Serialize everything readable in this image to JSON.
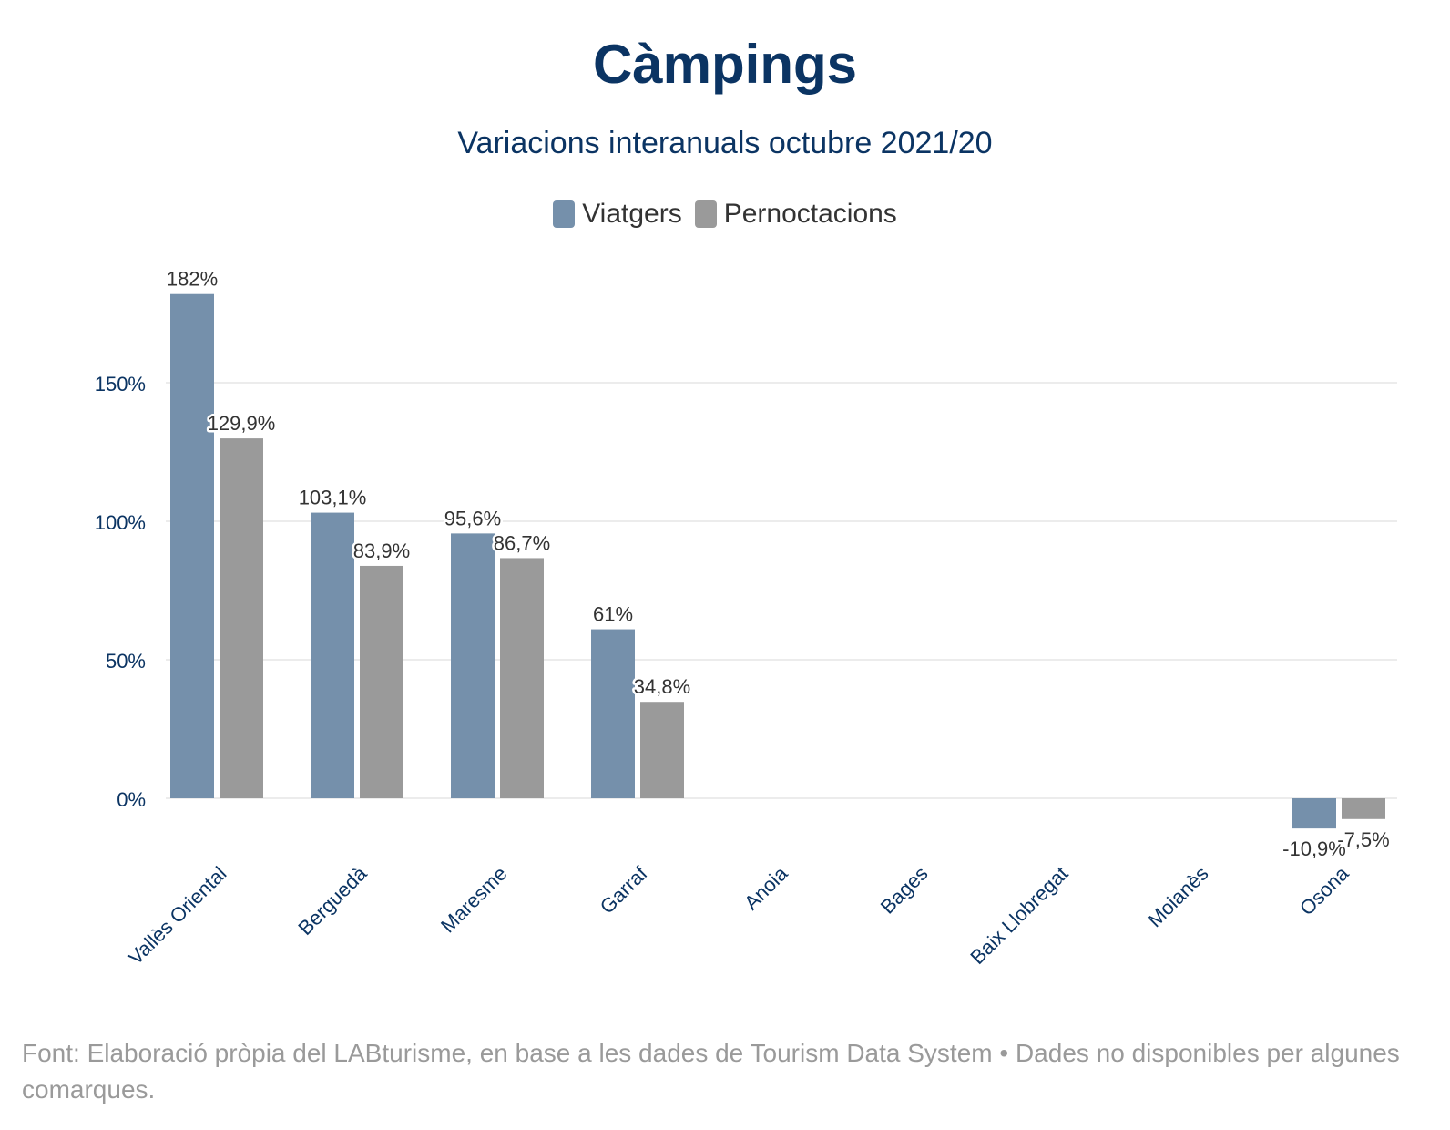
{
  "chart_data": {
    "type": "bar",
    "title": "Càmpings",
    "subtitle": "Variacions interanuals octubre 2021/20",
    "categories": [
      "Vallès Oriental",
      "Berguedà",
      "Maresme",
      "Garraf",
      "Anoia",
      "Bages",
      "Baix Llobregat",
      "Moianès",
      "Osona"
    ],
    "series": [
      {
        "name": "Viatgers",
        "color": "#7590ab",
        "values": [
          182,
          103.1,
          95.6,
          61,
          null,
          null,
          null,
          null,
          -10.9
        ],
        "labels": [
          "182%",
          "103,1%",
          "95,6%",
          "61%",
          "",
          "",
          "",
          "",
          "-10,9%"
        ]
      },
      {
        "name": "Pernoctacions",
        "color": "#9a9a9a",
        "values": [
          129.9,
          83.9,
          86.7,
          34.8,
          null,
          null,
          null,
          null,
          -7.5
        ],
        "labels": [
          "129,9%",
          "83,9%",
          "86,7%",
          "34,8%",
          "",
          "",
          "",
          "",
          "-7,5%"
        ]
      }
    ],
    "yticks": [
      0,
      50,
      100,
      150
    ],
    "ytick_labels": [
      "0%",
      "50%",
      "100%",
      "150%"
    ],
    "ylim": [
      -20,
      195
    ],
    "grid": true,
    "legend_position": "top-center"
  },
  "source_note": "Font: Elaboració pròpia del LABturisme, en base a les dades de Tourism Data System • Dades no disponibles per algunes comarques."
}
